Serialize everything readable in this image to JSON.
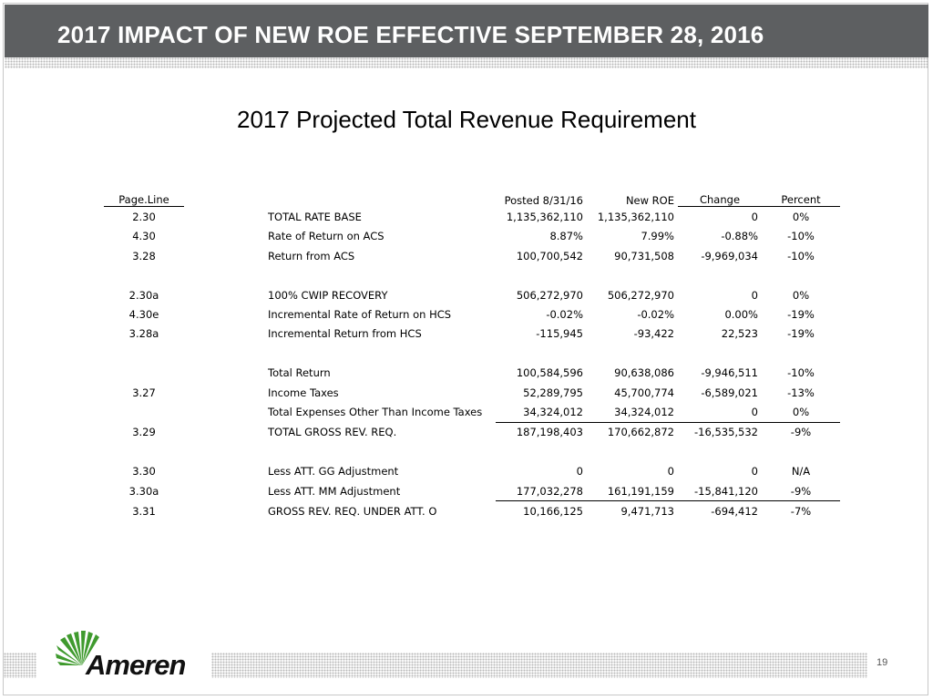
{
  "slide": {
    "title": "2017 IMPACT OF NEW ROE EFFECTIVE SEPTEMBER 28, 2016",
    "subtitle": "2017 Projected Total Revenue Requirement",
    "page_number": "19",
    "brand": "Ameren",
    "colors": {
      "header_bg": "#5d5f61",
      "brand_green": "#3f9a2e"
    }
  },
  "table": {
    "headers": {
      "page_line": "Page.Line",
      "posted": "Posted 8/31/16",
      "new_roe": "New ROE",
      "change": "Change",
      "percent": "Percent"
    },
    "rows": [
      {
        "page": "2.30",
        "desc": "TOTAL RATE BASE",
        "posted": "1,135,362,110",
        "new": "1,135,362,110",
        "change": "0",
        "pct": "0%"
      },
      {
        "page": "4.30",
        "desc": "Rate of Return on ACS",
        "posted": "8.87%",
        "new": "7.99%",
        "change": "-0.88%",
        "pct": "-10%"
      },
      {
        "page": "3.28",
        "desc": "Return from ACS",
        "posted": "100,700,542",
        "new": "90,731,508",
        "change": "-9,969,034",
        "pct": "-10%"
      },
      {
        "page": "2.30a",
        "desc": "100% CWIP RECOVERY",
        "posted": "506,272,970",
        "new": "506,272,970",
        "change": "0",
        "pct": "0%"
      },
      {
        "page": "4.30e",
        "desc": "Incremental Rate of Return on HCS",
        "posted": "-0.02%",
        "new": "-0.02%",
        "change": "0.00%",
        "pct": "-19%"
      },
      {
        "page": "3.28a",
        "desc": "Incremental Return from HCS",
        "posted": "-115,945",
        "new": "-93,422",
        "change": "22,523",
        "pct": "-19%"
      },
      {
        "page": "",
        "desc": "Total Return",
        "posted": "100,584,596",
        "new": "90,638,086",
        "change": "-9,946,511",
        "pct": "-10%"
      },
      {
        "page": "3.27",
        "desc": "Income Taxes",
        "posted": "52,289,795",
        "new": "45,700,774",
        "change": "-6,589,021",
        "pct": "-13%"
      },
      {
        "page": "",
        "desc": "Total Expenses Other Than Income Taxes",
        "posted": "34,324,012",
        "new": "34,324,012",
        "change": "0",
        "pct": "0%"
      },
      {
        "page": "3.29",
        "desc": "TOTAL GROSS REV. REQ.",
        "posted": "187,198,403",
        "new": "170,662,872",
        "change": "-16,535,532",
        "pct": "-9%"
      },
      {
        "page": "3.30",
        "desc": "Less ATT. GG Adjustment",
        "posted": "0",
        "new": "0",
        "change": "0",
        "pct": "N/A"
      },
      {
        "page": "3.30a",
        "desc": "Less ATT. MM Adjustment",
        "posted": "177,032,278",
        "new": "161,191,159",
        "change": "-15,841,120",
        "pct": "-9%"
      },
      {
        "page": "3.31",
        "desc": "GROSS REV. REQ. UNDER ATT. O",
        "posted": "10,166,125",
        "new": "9,471,713",
        "change": "-694,412",
        "pct": "-7%"
      }
    ]
  }
}
